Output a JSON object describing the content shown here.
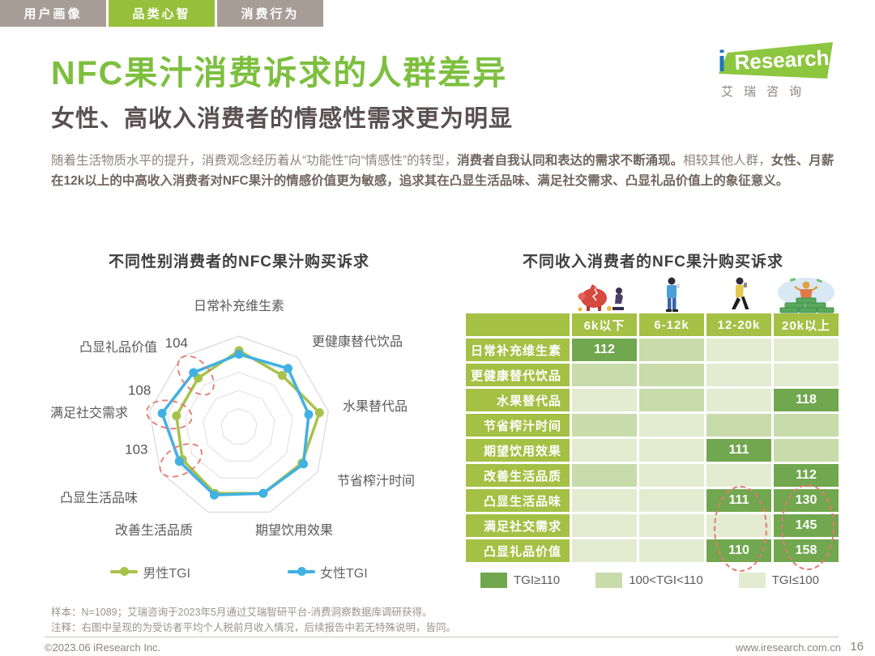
{
  "tabs": [
    {
      "label": "用户画像",
      "active": false
    },
    {
      "label": "品类心智",
      "active": true
    },
    {
      "label": "消费行为",
      "active": false
    }
  ],
  "logo": {
    "i": "i",
    "name_en": "Research",
    "name_cn": "艾瑞咨询"
  },
  "header": {
    "title": "NFC果汁消费诉求的人群差异",
    "subtitle": "女性、高收入消费者的情感性需求更为明显"
  },
  "intro": {
    "seg1": "随着生活物质水平的提升，消费观念经历着从“功能性”向“情感性”的转型，",
    "seg2": "消费者自我认同和表达的需求不断涌现。",
    "seg3": "相较其他人群，",
    "seg4": "女性、月薪在12k以上的中高收入消费者对NFC果汁的情感价值更为敏感，追求其在凸显生活品味、满足社交需求、凸显礼品价值上的象征意义。"
  },
  "chart_data": [
    {
      "type": "radar",
      "title": "不同性别消费者的NFC果汁购买诉求",
      "categories": [
        "日常补充维生素",
        "更健康替代饮品",
        "水果替代品",
        "节省榨汁时间",
        "期望饮用效果",
        "改善生活品质",
        "凸显生活品味",
        "满足社交需求",
        "凸显礼品价值"
      ],
      "series": [
        {
          "name": "男性TGI",
          "color": "#a6c24b",
          "values": [
            107,
            102,
            110,
            105,
            104,
            104,
            101,
            100,
            100
          ]
        },
        {
          "name": "女性TGI",
          "color": "#41b0e3",
          "values": [
            105,
            107,
            104,
            106,
            104,
            105,
            103,
            108,
            104
          ]
        }
      ],
      "axis_range": {
        "min": 65,
        "max": 115,
        "rings": 5
      },
      "annotations": [
        {
          "axis": "凸显礼品价值",
          "series": "女性TGI",
          "value": 104
        },
        {
          "axis": "满足社交需求",
          "series": "女性TGI",
          "value": 108
        },
        {
          "axis": "凸显生活品味",
          "series": "女性TGI",
          "value": 103
        }
      ],
      "legend_position": "bottom"
    },
    {
      "type": "heatmap",
      "title": "不同收入消费者的NFC果汁购买诉求",
      "columns": [
        "6k以下",
        "6-12k",
        "12-20k",
        "20k以上"
      ],
      "column_icons": [
        "broken-piggy-bank",
        "standing-person-phone",
        "walking-person-phone",
        "person-on-money-pile"
      ],
      "rows": [
        {
          "label": "日常补充维生素",
          "cells": [
            {
              "level": "high",
              "value": 112
            },
            {
              "level": "mid"
            },
            {
              "level": "low"
            },
            {
              "level": "low"
            }
          ]
        },
        {
          "label": "更健康替代饮品",
          "cells": [
            {
              "level": "mid"
            },
            {
              "level": "mid"
            },
            {
              "level": "low"
            },
            {
              "level": "low"
            }
          ]
        },
        {
          "label": "水果替代品",
          "cells": [
            {
              "level": "low"
            },
            {
              "level": "mid"
            },
            {
              "level": "low"
            },
            {
              "level": "high",
              "value": 118
            }
          ]
        },
        {
          "label": "节省榨汁时间",
          "cells": [
            {
              "level": "mid"
            },
            {
              "level": "low"
            },
            {
              "level": "mid"
            },
            {
              "level": "mid"
            }
          ]
        },
        {
          "label": "期望饮用效果",
          "cells": [
            {
              "level": "low"
            },
            {
              "level": "low"
            },
            {
              "level": "high",
              "value": 111
            },
            {
              "level": "mid"
            }
          ]
        },
        {
          "label": "改善生活品质",
          "cells": [
            {
              "level": "mid"
            },
            {
              "level": "low"
            },
            {
              "level": "low"
            },
            {
              "level": "high",
              "value": 112
            }
          ]
        },
        {
          "label": "凸显生活品味",
          "cells": [
            {
              "level": "low"
            },
            {
              "level": "low"
            },
            {
              "level": "high",
              "value": 111
            },
            {
              "level": "high",
              "value": 130
            }
          ]
        },
        {
          "label": "满足社交需求",
          "cells": [
            {
              "level": "low"
            },
            {
              "level": "low"
            },
            {
              "level": "low"
            },
            {
              "level": "high",
              "value": 145
            }
          ]
        },
        {
          "label": "凸显礼品价值",
          "cells": [
            {
              "level": "low"
            },
            {
              "level": "low"
            },
            {
              "level": "high",
              "value": 110
            },
            {
              "level": "high",
              "value": 158
            }
          ]
        }
      ],
      "levels": {
        "high": {
          "label": "TGI≥110",
          "color": "#71a74e"
        },
        "mid": {
          "label": "100<TGI<110",
          "color": "#c7dcaa"
        },
        "low": {
          "label": "TGI≤100",
          "color": "#e3ebd1"
        }
      },
      "legend": [
        {
          "label": "TGI≥110",
          "color": "#71a74e"
        },
        {
          "label": "100<TGI<110",
          "color": "#c7dcaa"
        },
        {
          "label": "TGI≤100",
          "color": "#e3ebd1"
        }
      ],
      "highlighted_columns": [
        "12-20k",
        "20k以上"
      ]
    }
  ],
  "footer": {
    "sample": "样本：N=1089；艾瑞咨询于2023年5月通过艾瑞智研平台-消费洞察数据库调研获得。",
    "note": "注释：右图中呈现的为受访者平均个人税前月收入情况，后续报告中若无特殊说明，皆同。",
    "copyright": "©2023.06 iResearch Inc.",
    "site": "www.iresearch.com.cn",
    "page": "16"
  },
  "colors": {
    "accent_green": "#7dbf3e",
    "tab_inactive": "#a79d96",
    "tab_active": "#96c03c",
    "table_header": "#a4c045",
    "cell_high": "#71a74e",
    "cell_mid": "#c7dcaa",
    "cell_low": "#e3ebd1",
    "male_line": "#a6c24b",
    "female_line": "#41b0e3",
    "highlight_dash": "#e4796f"
  }
}
